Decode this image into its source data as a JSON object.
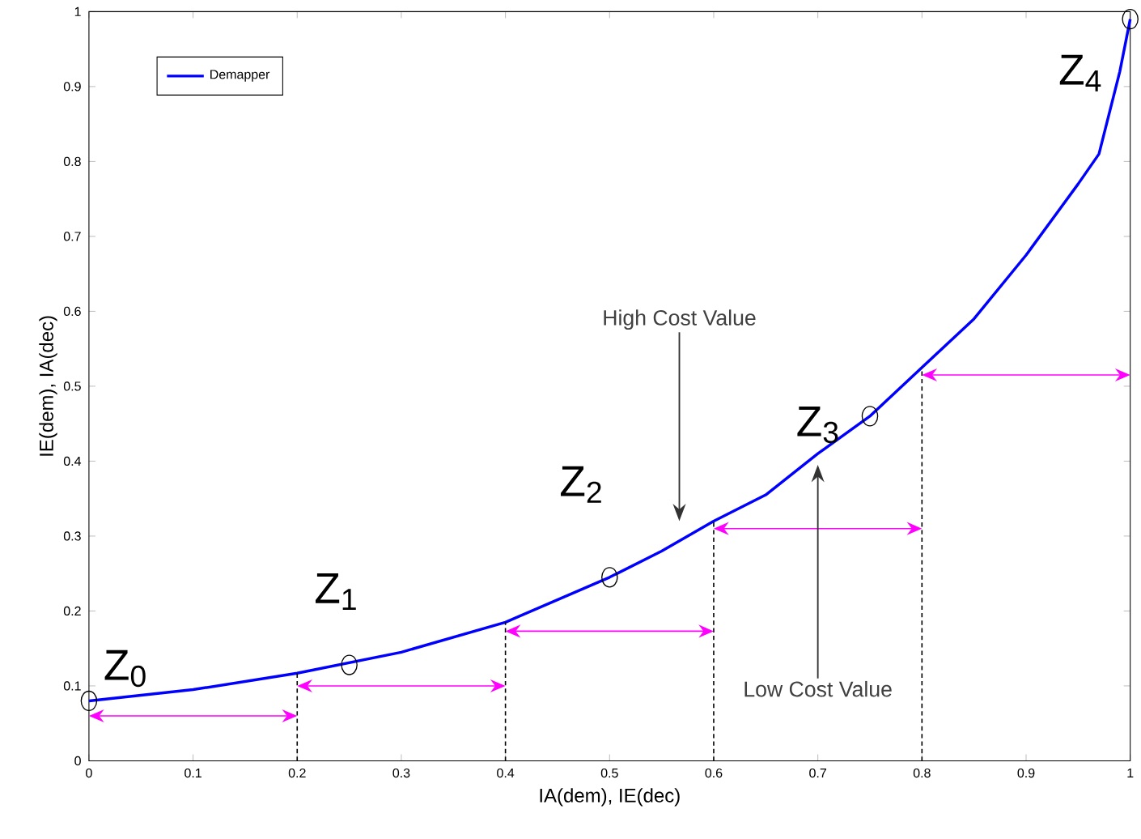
{
  "chart_data": {
    "type": "line",
    "xlabel": "IA(dem), IE(dec)",
    "ylabel": "IE(dem), IA(dec)",
    "xlim": [
      0,
      1
    ],
    "ylim": [
      0,
      1
    ],
    "xticks": [
      0,
      0.1,
      0.2,
      0.3,
      0.4,
      0.5,
      0.6,
      0.7,
      0.8,
      0.9,
      1
    ],
    "yticks": [
      0,
      0.1,
      0.2,
      0.3,
      0.4,
      0.5,
      0.6,
      0.7,
      0.8,
      0.9,
      1
    ],
    "grid": false,
    "legend": "top left",
    "series": [
      {
        "name": "Demapper",
        "color": "#0000ff",
        "x": [
          0,
          0.1,
          0.2,
          0.3,
          0.4,
          0.5,
          0.55,
          0.6,
          0.65,
          0.7,
          0.75,
          0.8,
          0.85,
          0.9,
          0.95,
          0.97,
          0.99,
          1
        ],
        "values": [
          0.08,
          0.095,
          0.117,
          0.145,
          0.185,
          0.245,
          0.28,
          0.32,
          0.355,
          0.41,
          0.46,
          0.525,
          0.59,
          0.675,
          0.77,
          0.81,
          0.92,
          0.99
        ]
      },
      {
        "type": "scatter",
        "marker": "circle",
        "color": "#000000",
        "x": [
          0,
          0.25,
          0.5,
          0.75,
          1
        ],
        "values": [
          0.08,
          0.128,
          0.245,
          0.46,
          0.99
        ]
      },
      {
        "line_style": "dashed",
        "color": "#000000",
        "x": [
          0.2,
          0.2
        ],
        "values": [
          0,
          0.117
        ]
      },
      {
        "line_style": "dashed",
        "color": "#000000",
        "x": [
          0.4,
          0.4
        ],
        "values": [
          0,
          0.185
        ]
      },
      {
        "line_style": "dashed",
        "color": "#000000",
        "x": [
          0.6,
          0.6
        ],
        "values": [
          0,
          0.32
        ]
      },
      {
        "line_style": "dashed",
        "color": "#000000",
        "x": [
          0.8,
          0.8
        ],
        "values": [
          0,
          0.525
        ]
      }
    ],
    "annotations": [
      {
        "text": "Z$_{0}$",
        "x": 0,
        "y": 0.08
      },
      {
        "text": "Z$_{1}$",
        "x": 0.25,
        "y": 0.128
      },
      {
        "text": "Z$_{2}$",
        "x": 0.5,
        "y": 0.245
      },
      {
        "text": "Z$_{3}$",
        "x": 0.75,
        "y": 0.46
      },
      {
        "text": "Z$_{4}$",
        "x": 1,
        "y": 0.99
      },
      "High Cost Value",
      "Low Cost Value"
    ]
  }
}
